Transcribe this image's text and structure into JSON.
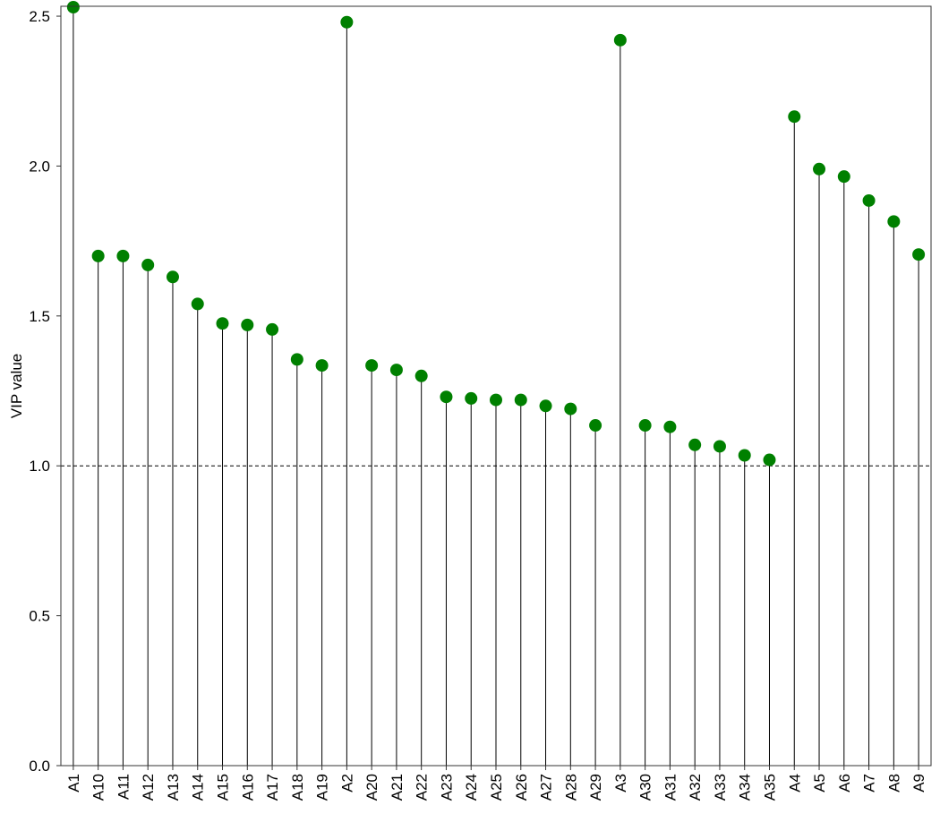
{
  "chart_data": {
    "type": "lollipop",
    "y_label": "VIP value",
    "categories": [
      "A1",
      "A10",
      "A11",
      "A12",
      "A13",
      "A14",
      "A15",
      "A16",
      "A17",
      "A18",
      "A19",
      "A2",
      "A20",
      "A21",
      "A22",
      "A23",
      "A24",
      "A25",
      "A26",
      "A27",
      "A28",
      "A29",
      "A3",
      "A30",
      "A31",
      "A32",
      "A33",
      "A34",
      "A35",
      "A4",
      "A5",
      "A6",
      "A7",
      "A8",
      "A9"
    ],
    "values": [
      2.53,
      1.7,
      1.7,
      1.67,
      1.63,
      1.54,
      1.475,
      1.47,
      1.455,
      1.355,
      1.335,
      2.48,
      1.335,
      1.32,
      1.3,
      1.23,
      1.225,
      1.22,
      1.22,
      1.2,
      1.19,
      1.135,
      2.42,
      1.135,
      1.13,
      1.07,
      1.065,
      1.035,
      1.02,
      2.165,
      1.99,
      1.965,
      1.885,
      1.815,
      1.705
    ],
    "color": "#008000",
    "hline": 1,
    "ylim": [
      0,
      2.533
    ],
    "yticks": [
      {
        "value": 0,
        "label": "0.0"
      },
      0.5,
      {
        "value": 1,
        "label": "1.0"
      },
      1.5,
      {
        "value": 2,
        "label": "2.0"
      },
      2.5
    ]
  }
}
